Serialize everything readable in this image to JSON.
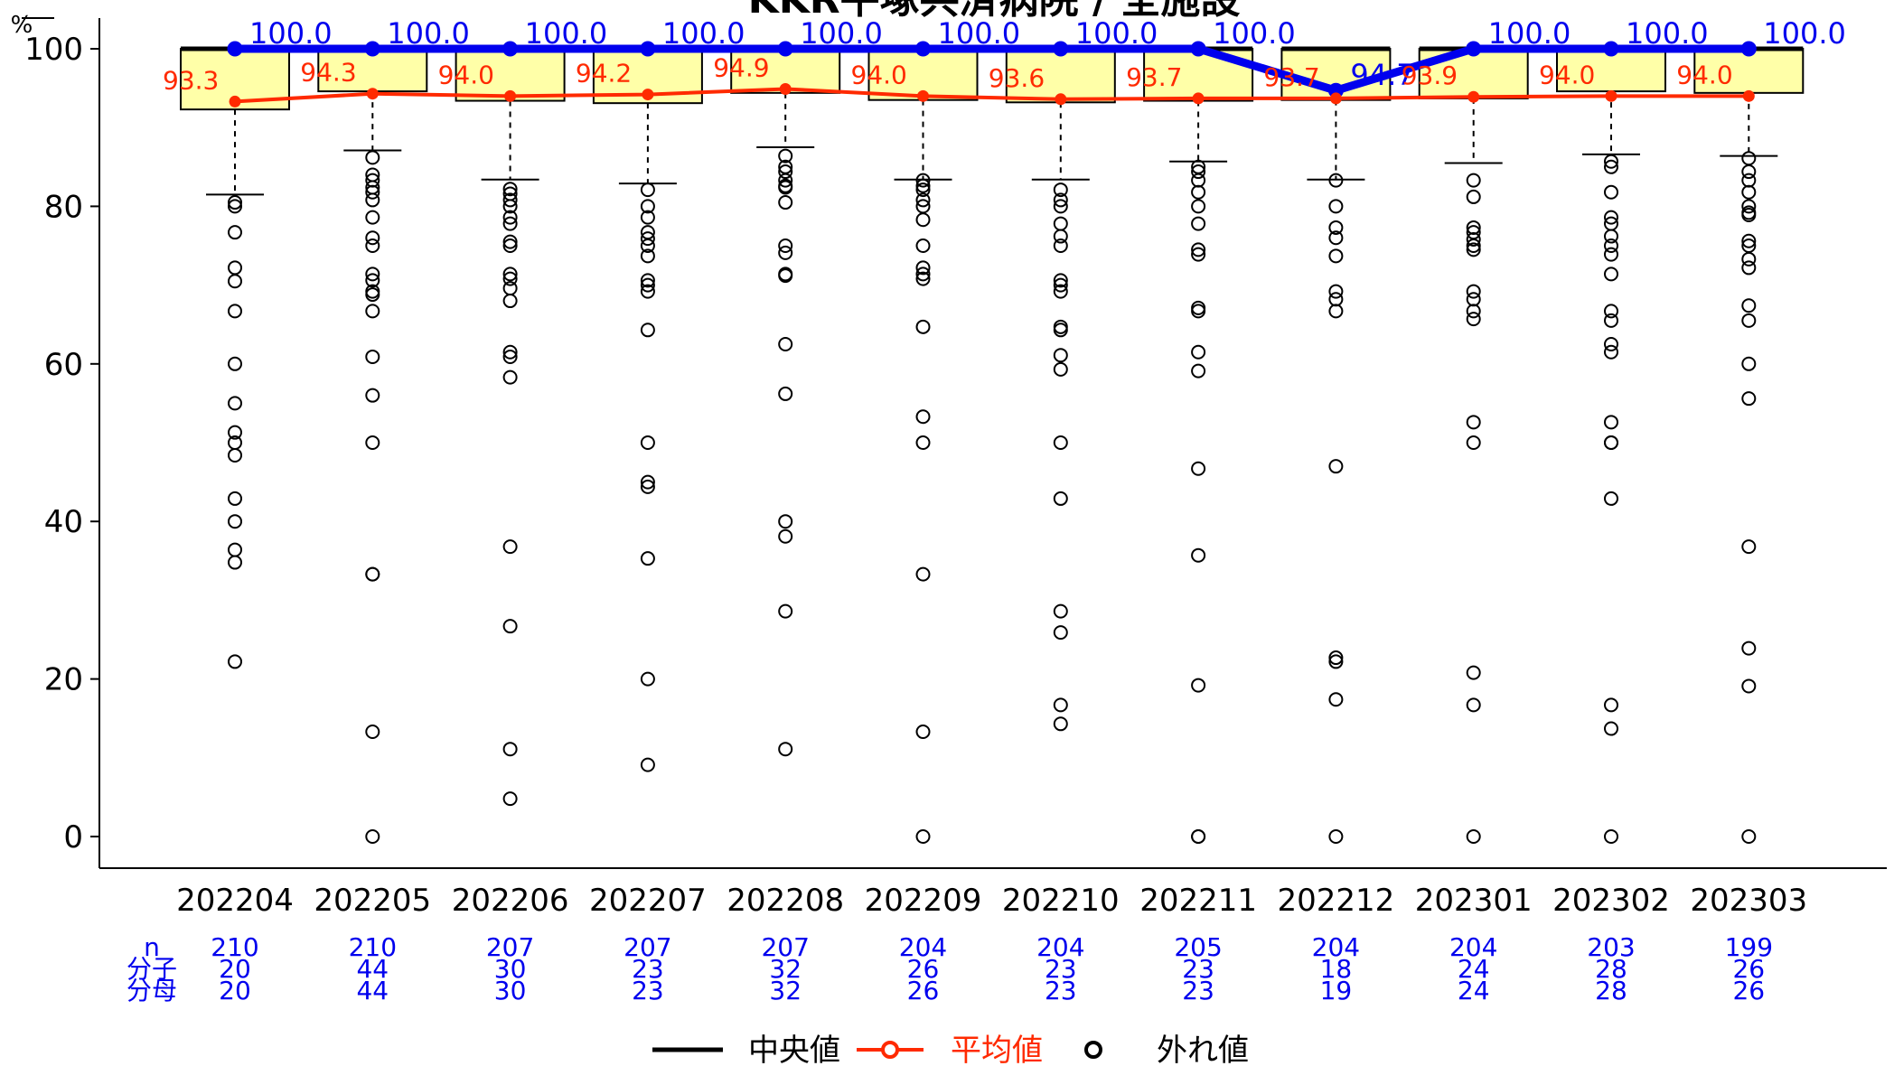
{
  "chart_data": {
    "type": "box",
    "title": "KKR平塚共済病院 / 全施設",
    "ylabel": "%",
    "ylim": [
      -3.5,
      104
    ],
    "yticks": [
      0,
      20,
      40,
      60,
      80,
      100
    ],
    "categories": [
      "202204",
      "202205",
      "202206",
      "202207",
      "202208",
      "202209",
      "202210",
      "202211",
      "202212",
      "202301",
      "202302",
      "202303"
    ],
    "boxes": [
      {
        "q1": 92.3,
        "median": 100.0,
        "q3": 100.0,
        "whisker_low": 81.5
      },
      {
        "q1": 94.6,
        "median": 100.0,
        "q3": 100.0,
        "whisker_low": 87.1
      },
      {
        "q1": 93.4,
        "median": 100.0,
        "q3": 100.0,
        "whisker_low": 83.4
      },
      {
        "q1": 93.1,
        "median": 100.0,
        "q3": 100.0,
        "whisker_low": 82.9
      },
      {
        "q1": 94.4,
        "median": 100.0,
        "q3": 100.0,
        "whisker_low": 87.5
      },
      {
        "q1": 93.5,
        "median": 100.0,
        "q3": 100.0,
        "whisker_low": 83.4
      },
      {
        "q1": 93.2,
        "median": 100.0,
        "q3": 100.0,
        "whisker_low": 83.4
      },
      {
        "q1": 93.4,
        "median": 100.0,
        "q3": 100.0,
        "whisker_low": 85.7
      },
      {
        "q1": 93.5,
        "median": 100.0,
        "q3": 100.0,
        "whisker_low": 83.4
      },
      {
        "q1": 93.7,
        "median": 100.0,
        "q3": 100.0,
        "whisker_low": 85.5
      },
      {
        "q1": 94.6,
        "median": 100.0,
        "q3": 100.0,
        "whisker_low": 86.6
      },
      {
        "q1": 94.4,
        "median": 100.0,
        "q3": 100.0,
        "whisker_low": 86.4
      }
    ],
    "outliers": [
      [
        80.5,
        80,
        76.7,
        72.2,
        70.5,
        66.7,
        60,
        55,
        51.3,
        50,
        48.4,
        42.9,
        40,
        36.4,
        34.8,
        22.2
      ],
      [
        86.2,
        84,
        83.3,
        82.4,
        81.8,
        80.8,
        78.6,
        76,
        75,
        71.4,
        70.6,
        69.2,
        68.8,
        66.7,
        60.9,
        56,
        50,
        33.3,
        33.3,
        13.3,
        0
      ],
      [
        82.2,
        81.6,
        80.8,
        80,
        78.6,
        77.8,
        75.5,
        75,
        71.4,
        70.8,
        69.6,
        68,
        61.5,
        60.9,
        58.3,
        36.8,
        26.7,
        11.1,
        4.8
      ],
      [
        82.1,
        80,
        78.6,
        76.7,
        75.9,
        75,
        73.7,
        70.6,
        70,
        69.2,
        64.3,
        50,
        45,
        44.4,
        35.3,
        20,
        9.1
      ],
      [
        86.4,
        85,
        84.4,
        83.3,
        82.6,
        82.4,
        80.5,
        75,
        74.1,
        71.4,
        71.2,
        62.5,
        56.2,
        40,
        38.1,
        28.6,
        11.1
      ],
      [
        83.3,
        82.6,
        82.1,
        80.8,
        80,
        78.3,
        75,
        72.2,
        71.4,
        70.8,
        64.7,
        53.3,
        50,
        33.3,
        13.3,
        0
      ],
      [
        82.1,
        80.8,
        80,
        77.8,
        76.2,
        75,
        70.6,
        70,
        69.2,
        64.7,
        64.3,
        61.1,
        59.3,
        50,
        42.9,
        28.6,
        25.9,
        16.7,
        14.3
      ],
      [
        85,
        84.4,
        83.3,
        81.8,
        80,
        77.8,
        74.5,
        73.9,
        67.1,
        66.7,
        61.5,
        59.1,
        46.7,
        35.7,
        19.2,
        0,
        0
      ],
      [
        83.3,
        80,
        77.3,
        76,
        73.7,
        69.2,
        68.2,
        66.7,
        47,
        22.7,
        22.2,
        17.4,
        0
      ],
      [
        83.3,
        81.2,
        77.3,
        76.7,
        75.8,
        75,
        74.5,
        69.2,
        68.2,
        66.7,
        65.7,
        52.6,
        50,
        20.8,
        16.7,
        0
      ],
      [
        85.7,
        85,
        81.8,
        78.6,
        77.8,
        76.2,
        75,
        73.9,
        71.4,
        66.7,
        65.5,
        62.5,
        61.5,
        52.6,
        50,
        50,
        42.9,
        16.7,
        13.7,
        0
      ],
      [
        86.1,
        84.4,
        83.3,
        81.8,
        80,
        79.2,
        78.9,
        75.6,
        75,
        73.3,
        72.2,
        67.4,
        65.5,
        60,
        55.6,
        36.8,
        23.9,
        19.1,
        0
      ]
    ],
    "series": [
      {
        "name": "KKR平塚共済病院",
        "color": "#0000ee",
        "values": [
          100.0,
          100.0,
          100.0,
          100.0,
          100.0,
          100.0,
          100.0,
          100.0,
          94.7,
          100.0,
          100.0,
          100.0
        ],
        "labels": [
          "100.0",
          "100.0",
          "100.0",
          "100.0",
          "100.0",
          "100.0",
          "100.0",
          "100.0",
          "94.7",
          "100.0",
          "100.0",
          "100.0"
        ]
      },
      {
        "name": "平均値",
        "color": "#ff2a00",
        "values": [
          93.3,
          94.3,
          94.0,
          94.2,
          94.9,
          94.0,
          93.6,
          93.7,
          93.7,
          93.9,
          94.0,
          94.0
        ],
        "labels": [
          "93.3",
          "94.3",
          "94.0",
          "94.2",
          "94.9",
          "94.0",
          "93.6",
          "93.7",
          "93.7",
          "93.9",
          "94.0",
          "94.0"
        ]
      }
    ],
    "legend": {
      "position": "bottom",
      "items": [
        {
          "label": "中央値",
          "color": "#000000",
          "kind": "line"
        },
        {
          "label": "平均値",
          "color": "#ff2a00",
          "kind": "line-marker"
        },
        {
          "label": "外れ値",
          "color": "#000000",
          "kind": "circle"
        }
      ]
    },
    "footer": {
      "row_labels": [
        "n",
        "分子",
        "分母"
      ],
      "n": [
        "210",
        "210",
        "207",
        "207",
        "207",
        "204",
        "204",
        "205",
        "204",
        "204",
        "203",
        "199"
      ],
      "numerator": [
        "20",
        "44",
        "30",
        "23",
        "32",
        "26",
        "23",
        "23",
        "18",
        "24",
        "28",
        "26"
      ],
      "denominator": [
        "20",
        "44",
        "30",
        "23",
        "32",
        "26",
        "23",
        "23",
        "19",
        "24",
        "28",
        "26"
      ]
    },
    "colors": {
      "box_fill": "#ffffa8",
      "axis": "#000000",
      "footer_text": "#0000ee"
    }
  }
}
